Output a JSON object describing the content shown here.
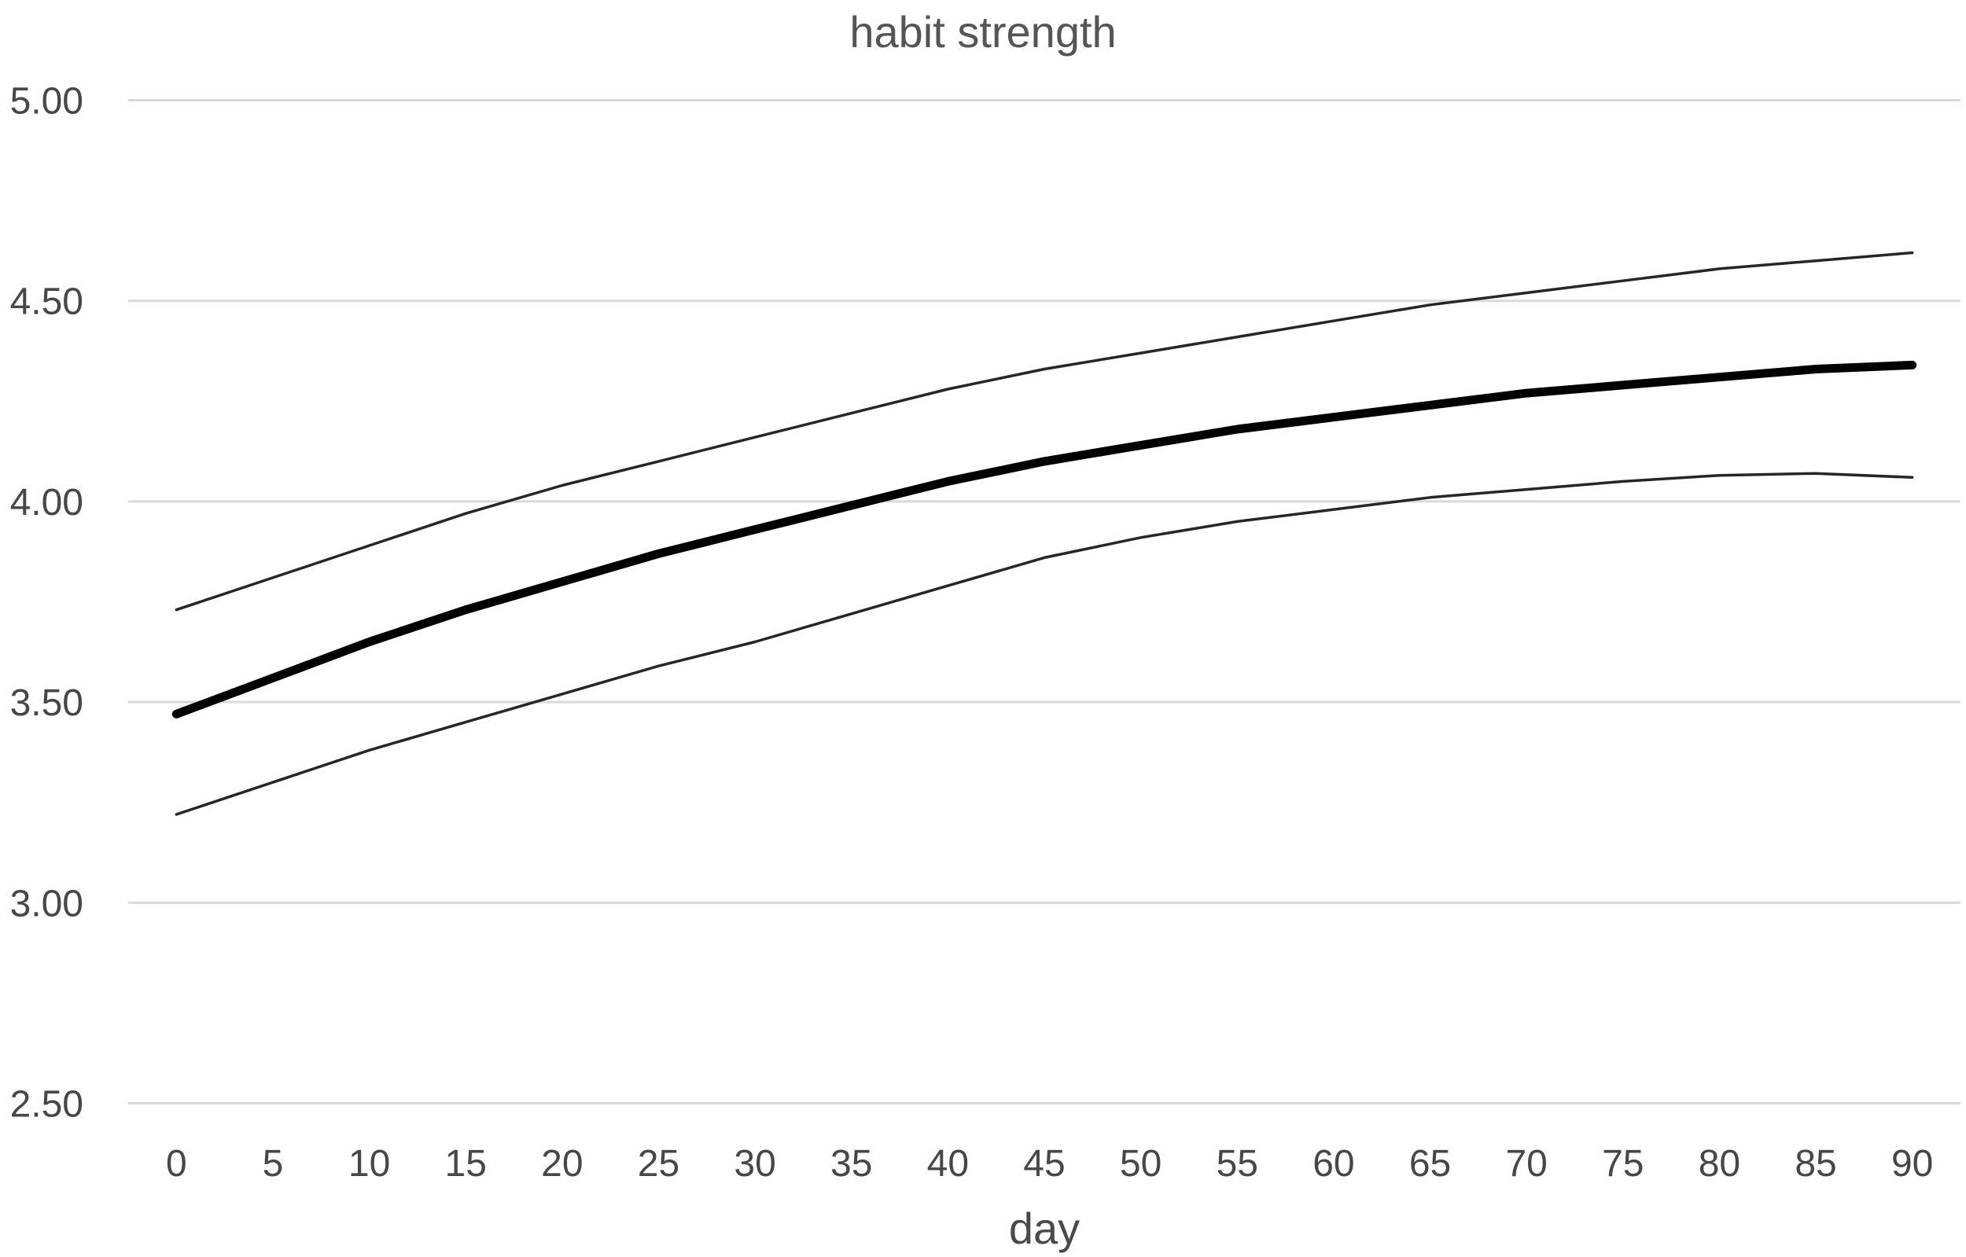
{
  "chart": {
    "title": "habit strength",
    "x_axis_title": "day"
  },
  "chart_data": {
    "type": "line",
    "title": "habit strength",
    "xlabel": "day",
    "ylabel": "",
    "x": [
      0,
      5,
      10,
      15,
      20,
      25,
      30,
      35,
      40,
      45,
      50,
      55,
      60,
      65,
      70,
      75,
      80,
      85,
      90
    ],
    "series": [
      {
        "name": "main",
        "values": [
          3.47,
          3.56,
          3.65,
          3.73,
          3.8,
          3.87,
          3.93,
          3.99,
          4.05,
          4.1,
          4.14,
          4.18,
          4.21,
          4.24,
          4.27,
          4.29,
          4.31,
          4.33,
          4.34
        ],
        "color": "#000000",
        "stroke_width": 11
      },
      {
        "name": "upper",
        "values": [
          3.73,
          3.81,
          3.89,
          3.97,
          4.04,
          4.1,
          4.16,
          4.22,
          4.28,
          4.33,
          4.37,
          4.41,
          4.45,
          4.49,
          4.52,
          4.55,
          4.58,
          4.6,
          4.62
        ],
        "color": "#262626",
        "stroke_width": 3.5
      },
      {
        "name": "lower",
        "values": [
          3.22,
          3.3,
          3.38,
          3.45,
          3.52,
          3.59,
          3.65,
          3.72,
          3.79,
          3.86,
          3.91,
          3.95,
          3.98,
          4.01,
          4.03,
          4.05,
          4.065,
          4.07,
          4.06
        ],
        "color": "#262626",
        "stroke_width": 3.5
      }
    ],
    "ylim": [
      2.5,
      5.0
    ],
    "yticks": [
      {
        "value": 5.0,
        "label": "5.00"
      },
      {
        "value": 4.5,
        "label": "4.50"
      },
      {
        "value": 4.0,
        "label": "4.00"
      },
      {
        "value": 3.5,
        "label": "3.50"
      },
      {
        "value": 3.0,
        "label": "3.00"
      },
      {
        "value": 2.5,
        "label": "2.50"
      }
    ],
    "grid": true,
    "legend_position": "none",
    "colors": {
      "gridline": "#d9d9d9",
      "tick_text": "#474747",
      "title_text": "#555555",
      "background": "#ffffff"
    }
  }
}
